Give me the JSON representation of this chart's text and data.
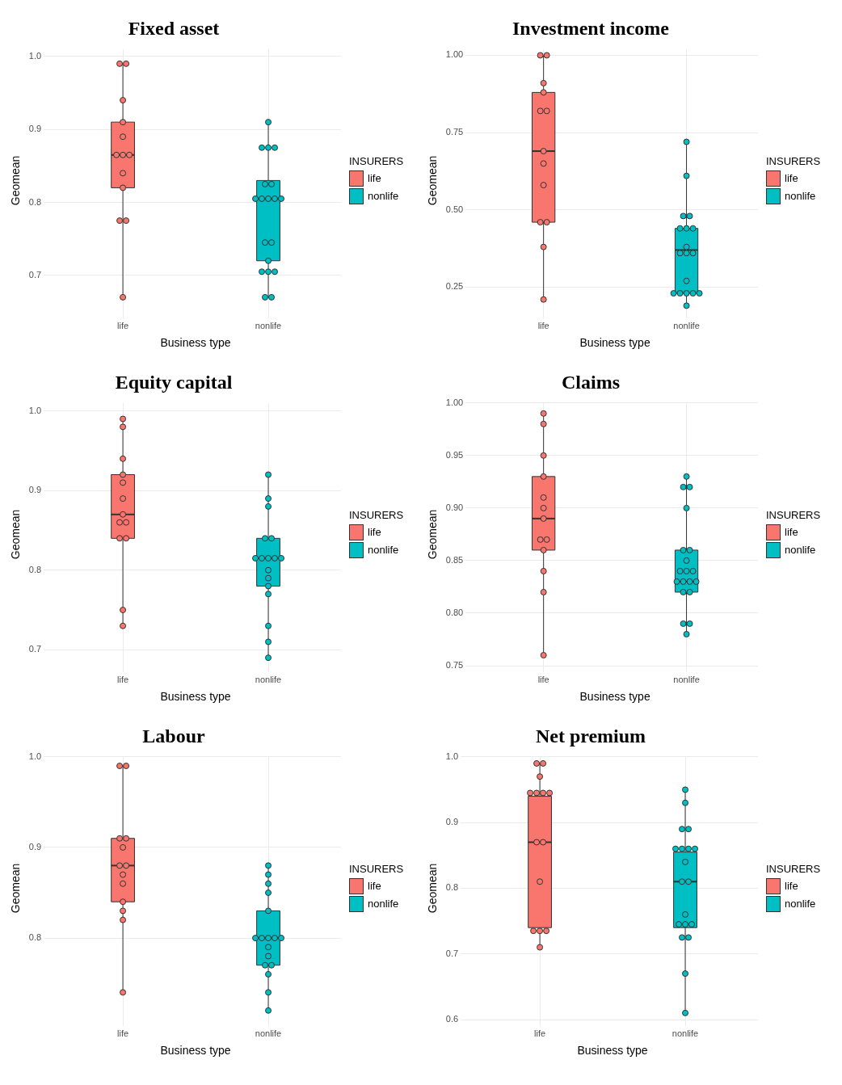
{
  "chart_data": [
    {
      "type": "box",
      "title": "Fixed asset",
      "xlabel": "Business type",
      "ylabel": "Geomean",
      "legend_title": "INSURERS",
      "legend": "right",
      "grid": true,
      "marker": "circle",
      "categories": [
        "life",
        "nonlife"
      ],
      "ylim": [
        0.65,
        1.01
      ],
      "yticks": [
        0.7,
        0.8,
        0.9,
        {
          "value": 1,
          "label": "1.0"
        }
      ],
      "series": [
        {
          "name": "life",
          "type": "box",
          "color": "#f8766d",
          "boxes": [
            {
              "low": 0.67,
              "q1": 0.82,
              "median": 0.865,
              "q3": 0.91,
              "high": 0.99
            },
            null
          ]
        },
        {
          "name": "nonlife",
          "type": "box",
          "color": "#00bfc4",
          "boxes": [
            null,
            {
              "low": 0.67,
              "q1": 0.72,
              "median": 0.805,
              "q3": 0.83,
              "high": 0.91
            }
          ]
        },
        {
          "type": "scatter",
          "color": "#f8766d",
          "x": [
            "life",
            "life",
            "life",
            "life",
            "life",
            "life",
            "life",
            "life",
            "life",
            "life",
            "life",
            "life",
            "life"
          ],
          "values": [
            0.99,
            0.99,
            0.94,
            0.91,
            0.89,
            0.865,
            0.865,
            0.865,
            0.84,
            0.82,
            0.775,
            0.775,
            0.67
          ]
        },
        {
          "type": "scatter",
          "color": "#00bfc4",
          "x": [
            "nonlife",
            "nonlife",
            "nonlife",
            "nonlife",
            "nonlife",
            "nonlife",
            "nonlife",
            "nonlife",
            "nonlife",
            "nonlife",
            "nonlife",
            "nonlife",
            "nonlife",
            "nonlife",
            "nonlife",
            "nonlife",
            "nonlife",
            "nonlife",
            "nonlife"
          ],
          "values": [
            0.91,
            0.875,
            0.875,
            0.875,
            0.825,
            0.825,
            0.805,
            0.805,
            0.805,
            0.805,
            0.805,
            0.745,
            0.745,
            0.72,
            0.705,
            0.705,
            0.705,
            0.67,
            0.67
          ]
        }
      ]
    },
    {
      "type": "box",
      "title": "Investment income",
      "xlabel": "Business type",
      "ylabel": "Geomean",
      "legend_title": "INSURERS",
      "legend": "right",
      "grid": true,
      "marker": "circle",
      "categories": [
        "life",
        "nonlife"
      ],
      "ylim": [
        0.17,
        1.02
      ],
      "yticks": [
        0.25,
        {
          "value": 0.5,
          "label": "0.50"
        },
        0.75,
        {
          "value": 1,
          "label": "1.00"
        }
      ],
      "series": [
        {
          "name": "life",
          "type": "box",
          "color": "#f8766d",
          "boxes": [
            {
              "low": 0.21,
              "q1": 0.46,
              "median": 0.69,
              "q3": 0.88,
              "high": 1.0
            },
            null
          ]
        },
        {
          "name": "nonlife",
          "type": "box",
          "color": "#00bfc4",
          "boxes": [
            null,
            {
              "low": 0.19,
              "q1": 0.23,
              "median": 0.37,
              "q3": 0.44,
              "high": 0.72
            }
          ]
        },
        {
          "type": "scatter",
          "color": "#f8766d",
          "x": [
            "life",
            "life",
            "life",
            "life",
            "life",
            "life",
            "life",
            "life",
            "life",
            "life",
            "life",
            "life",
            "life"
          ],
          "values": [
            1.0,
            1.0,
            0.91,
            0.88,
            0.82,
            0.82,
            0.69,
            0.65,
            0.58,
            0.46,
            0.46,
            0.38,
            0.21
          ]
        },
        {
          "type": "scatter",
          "color": "#00bfc4",
          "x": [
            "nonlife",
            "nonlife",
            "nonlife",
            "nonlife",
            "nonlife",
            "nonlife",
            "nonlife",
            "nonlife",
            "nonlife",
            "nonlife",
            "nonlife",
            "nonlife",
            "nonlife",
            "nonlife",
            "nonlife",
            "nonlife",
            "nonlife",
            "nonlife"
          ],
          "values": [
            0.72,
            0.61,
            0.48,
            0.48,
            0.44,
            0.44,
            0.44,
            0.38,
            0.36,
            0.36,
            0.36,
            0.27,
            0.23,
            0.23,
            0.23,
            0.23,
            0.23,
            0.19
          ]
        }
      ]
    },
    {
      "type": "box",
      "title": "Equity capital",
      "xlabel": "Business type",
      "ylabel": "Geomean",
      "legend_title": "INSURERS",
      "legend": "right",
      "grid": true,
      "marker": "circle",
      "categories": [
        "life",
        "nonlife"
      ],
      "ylim": [
        0.68,
        1.01
      ],
      "yticks": [
        0.7,
        0.8,
        0.9,
        {
          "value": 1,
          "label": "1.0"
        }
      ],
      "series": [
        {
          "name": "life",
          "type": "box",
          "color": "#f8766d",
          "boxes": [
            {
              "low": 0.73,
              "q1": 0.84,
              "median": 0.87,
              "q3": 0.92,
              "high": 0.99
            },
            null
          ]
        },
        {
          "name": "nonlife",
          "type": "box",
          "color": "#00bfc4",
          "boxes": [
            null,
            {
              "low": 0.69,
              "q1": 0.78,
              "median": 0.815,
              "q3": 0.84,
              "high": 0.92
            }
          ]
        },
        {
          "type": "scatter",
          "color": "#f8766d",
          "x": [
            "life",
            "life",
            "life",
            "life",
            "life",
            "life",
            "life",
            "life",
            "life",
            "life",
            "life",
            "life",
            "life"
          ],
          "values": [
            0.99,
            0.98,
            0.94,
            0.92,
            0.91,
            0.89,
            0.87,
            0.86,
            0.86,
            0.84,
            0.84,
            0.75,
            0.73
          ]
        },
        {
          "type": "scatter",
          "color": "#00bfc4",
          "x": [
            "nonlife",
            "nonlife",
            "nonlife",
            "nonlife",
            "nonlife",
            "nonlife",
            "nonlife",
            "nonlife",
            "nonlife",
            "nonlife",
            "nonlife",
            "nonlife",
            "nonlife",
            "nonlife",
            "nonlife",
            "nonlife",
            "nonlife"
          ],
          "values": [
            0.92,
            0.89,
            0.88,
            0.84,
            0.84,
            0.815,
            0.815,
            0.815,
            0.815,
            0.815,
            0.8,
            0.79,
            0.78,
            0.77,
            0.73,
            0.71,
            0.69
          ]
        }
      ]
    },
    {
      "type": "box",
      "title": "Claims",
      "xlabel": "Business type",
      "ylabel": "Geomean",
      "legend_title": "INSURERS",
      "legend": "right",
      "grid": true,
      "marker": "circle",
      "categories": [
        "life",
        "nonlife"
      ],
      "ylim": [
        0.75,
        1.0
      ],
      "yticks": [
        0.75,
        {
          "value": 0.8,
          "label": "0.80"
        },
        0.85,
        {
          "value": 0.9,
          "label": "0.90"
        },
        0.95,
        {
          "value": 1,
          "label": "1.00"
        }
      ],
      "series": [
        {
          "name": "life",
          "type": "box",
          "color": "#f8766d",
          "boxes": [
            {
              "low": 0.76,
              "q1": 0.86,
              "median": 0.89,
              "q3": 0.93,
              "high": 0.99
            },
            null
          ]
        },
        {
          "name": "nonlife",
          "type": "box",
          "color": "#00bfc4",
          "boxes": [
            null,
            {
              "low": 0.78,
              "q1": 0.82,
              "median": 0.83,
              "q3": 0.86,
              "high": 0.93
            }
          ]
        },
        {
          "type": "scatter",
          "color": "#f8766d",
          "x": [
            "life",
            "life",
            "life",
            "life",
            "life",
            "life",
            "life",
            "life",
            "life",
            "life",
            "life",
            "life",
            "life"
          ],
          "values": [
            0.99,
            0.98,
            0.95,
            0.93,
            0.91,
            0.9,
            0.89,
            0.87,
            0.87,
            0.86,
            0.84,
            0.82,
            0.76
          ]
        },
        {
          "type": "scatter",
          "color": "#00bfc4",
          "x": [
            "nonlife",
            "nonlife",
            "nonlife",
            "nonlife",
            "nonlife",
            "nonlife",
            "nonlife",
            "nonlife",
            "nonlife",
            "nonlife",
            "nonlife",
            "nonlife",
            "nonlife",
            "nonlife",
            "nonlife",
            "nonlife",
            "nonlife",
            "nonlife",
            "nonlife"
          ],
          "values": [
            0.93,
            0.92,
            0.92,
            0.9,
            0.86,
            0.86,
            0.85,
            0.84,
            0.84,
            0.84,
            0.83,
            0.83,
            0.83,
            0.83,
            0.82,
            0.82,
            0.79,
            0.79,
            0.78
          ]
        }
      ]
    },
    {
      "type": "box",
      "title": "Labour",
      "xlabel": "Business type",
      "ylabel": "Geomean",
      "legend_title": "INSURERS",
      "legend": "right",
      "grid": true,
      "marker": "circle",
      "categories": [
        "life",
        "nonlife"
      ],
      "ylim": [
        0.71,
        1.0
      ],
      "yticks": [
        0.8,
        0.9,
        {
          "value": 1,
          "label": "1.0"
        }
      ],
      "series": [
        {
          "name": "life",
          "type": "box",
          "color": "#f8766d",
          "boxes": [
            {
              "low": 0.74,
              "q1": 0.84,
              "median": 0.88,
              "q3": 0.91,
              "high": 0.99
            },
            null
          ]
        },
        {
          "name": "nonlife",
          "type": "box",
          "color": "#00bfc4",
          "boxes": [
            null,
            {
              "low": 0.72,
              "q1": 0.77,
              "median": 0.8,
              "q3": 0.83,
              "high": 0.88
            }
          ]
        },
        {
          "type": "scatter",
          "color": "#f8766d",
          "x": [
            "life",
            "life",
            "life",
            "life",
            "life",
            "life",
            "life",
            "life",
            "life",
            "life",
            "life",
            "life",
            "life"
          ],
          "values": [
            0.99,
            0.99,
            0.91,
            0.91,
            0.9,
            0.88,
            0.88,
            0.87,
            0.86,
            0.84,
            0.83,
            0.82,
            0.74
          ]
        },
        {
          "type": "scatter",
          "color": "#00bfc4",
          "x": [
            "nonlife",
            "nonlife",
            "nonlife",
            "nonlife",
            "nonlife",
            "nonlife",
            "nonlife",
            "nonlife",
            "nonlife",
            "nonlife",
            "nonlife",
            "nonlife",
            "nonlife",
            "nonlife",
            "nonlife",
            "nonlife",
            "nonlife"
          ],
          "values": [
            0.88,
            0.87,
            0.86,
            0.85,
            0.83,
            0.8,
            0.8,
            0.8,
            0.8,
            0.8,
            0.79,
            0.78,
            0.77,
            0.77,
            0.76,
            0.74,
            0.72
          ]
        }
      ]
    },
    {
      "type": "box",
      "title": "Net premium",
      "xlabel": "Business type",
      "ylabel": "Geomean",
      "legend_title": "INSURERS",
      "legend": "right",
      "grid": true,
      "marker": "circle",
      "categories": [
        "life",
        "nonlife"
      ],
      "ylim": [
        0.6,
        1.0
      ],
      "yticks": [
        0.6,
        0.7,
        0.8,
        0.9,
        {
          "value": 1,
          "label": "1.0"
        }
      ],
      "series": [
        {
          "name": "life",
          "type": "box",
          "color": "#f8766d",
          "boxes": [
            {
              "low": 0.71,
              "q1": 0.74,
              "median": 0.87,
              "q3": 0.94,
              "high": 0.99
            },
            null
          ]
        },
        {
          "name": "nonlife",
          "type": "box",
          "color": "#00bfc4",
          "boxes": [
            null,
            {
              "low": 0.61,
              "q1": 0.74,
              "median": 0.81,
              "q3": 0.855,
              "high": 0.95
            }
          ]
        },
        {
          "type": "scatter",
          "color": "#f8766d",
          "x": [
            "life",
            "life",
            "life",
            "life",
            "life",
            "life",
            "life",
            "life",
            "life",
            "life",
            "life",
            "life",
            "life",
            "life"
          ],
          "values": [
            0.99,
            0.99,
            0.97,
            0.945,
            0.945,
            0.945,
            0.945,
            0.87,
            0.87,
            0.81,
            0.735,
            0.735,
            0.735,
            0.71
          ]
        },
        {
          "type": "scatter",
          "color": "#00bfc4",
          "x": [
            "nonlife",
            "nonlife",
            "nonlife",
            "nonlife",
            "nonlife",
            "nonlife",
            "nonlife",
            "nonlife",
            "nonlife",
            "nonlife",
            "nonlife",
            "nonlife",
            "nonlife",
            "nonlife",
            "nonlife",
            "nonlife",
            "nonlife",
            "nonlife",
            "nonlife"
          ],
          "values": [
            0.95,
            0.93,
            0.89,
            0.89,
            0.86,
            0.86,
            0.86,
            0.86,
            0.84,
            0.81,
            0.81,
            0.76,
            0.745,
            0.745,
            0.745,
            0.725,
            0.725,
            0.67,
            0.61
          ]
        }
      ]
    }
  ]
}
